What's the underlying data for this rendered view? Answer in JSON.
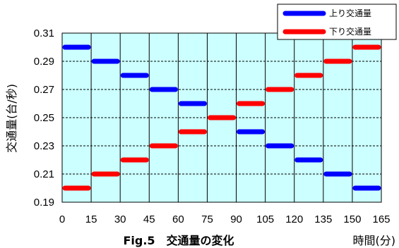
{
  "chart_data": {
    "type": "line",
    "step": true,
    "xlabel": "時間(分)",
    "ylabel": "交通量(台/秒)",
    "caption": "Fig.5　交通量の変化",
    "x_ticks": [
      0,
      15,
      30,
      45,
      60,
      75,
      90,
      105,
      120,
      135,
      150,
      165
    ],
    "y_ticks": [
      "0.19",
      "0.21",
      "0.23",
      "0.25",
      "0.27",
      "0.29",
      "0.31"
    ],
    "xlim": [
      0,
      165
    ],
    "ylim": [
      0.19,
      0.31
    ],
    "grid": true,
    "legend_position": "top-right",
    "plot_background": "#ccffff",
    "series": [
      {
        "name": "上り交通量",
        "color": "#0000ff",
        "segments": [
          {
            "x0": 0,
            "x1": 15,
            "y": 0.3
          },
          {
            "x0": 15,
            "x1": 30,
            "y": 0.29
          },
          {
            "x0": 30,
            "x1": 45,
            "y": 0.28
          },
          {
            "x0": 45,
            "x1": 60,
            "y": 0.27
          },
          {
            "x0": 60,
            "x1": 75,
            "y": 0.26
          },
          {
            "x0": 90,
            "x1": 105,
            "y": 0.24
          },
          {
            "x0": 105,
            "x1": 120,
            "y": 0.23
          },
          {
            "x0": 120,
            "x1": 135,
            "y": 0.22
          },
          {
            "x0": 135,
            "x1": 150,
            "y": 0.21
          },
          {
            "x0": 150,
            "x1": 165,
            "y": 0.2
          }
        ]
      },
      {
        "name": "下り交通量",
        "color": "#ff0000",
        "segments": [
          {
            "x0": 0,
            "x1": 15,
            "y": 0.2
          },
          {
            "x0": 15,
            "x1": 30,
            "y": 0.21
          },
          {
            "x0": 30,
            "x1": 45,
            "y": 0.22
          },
          {
            "x0": 45,
            "x1": 60,
            "y": 0.23
          },
          {
            "x0": 60,
            "x1": 75,
            "y": 0.24
          },
          {
            "x0": 75,
            "x1": 90,
            "y": 0.25
          },
          {
            "x0": 90,
            "x1": 105,
            "y": 0.26
          },
          {
            "x0": 105,
            "x1": 120,
            "y": 0.27
          },
          {
            "x0": 120,
            "x1": 135,
            "y": 0.28
          },
          {
            "x0": 135,
            "x1": 150,
            "y": 0.29
          },
          {
            "x0": 150,
            "x1": 165,
            "y": 0.3
          }
        ]
      }
    ]
  }
}
